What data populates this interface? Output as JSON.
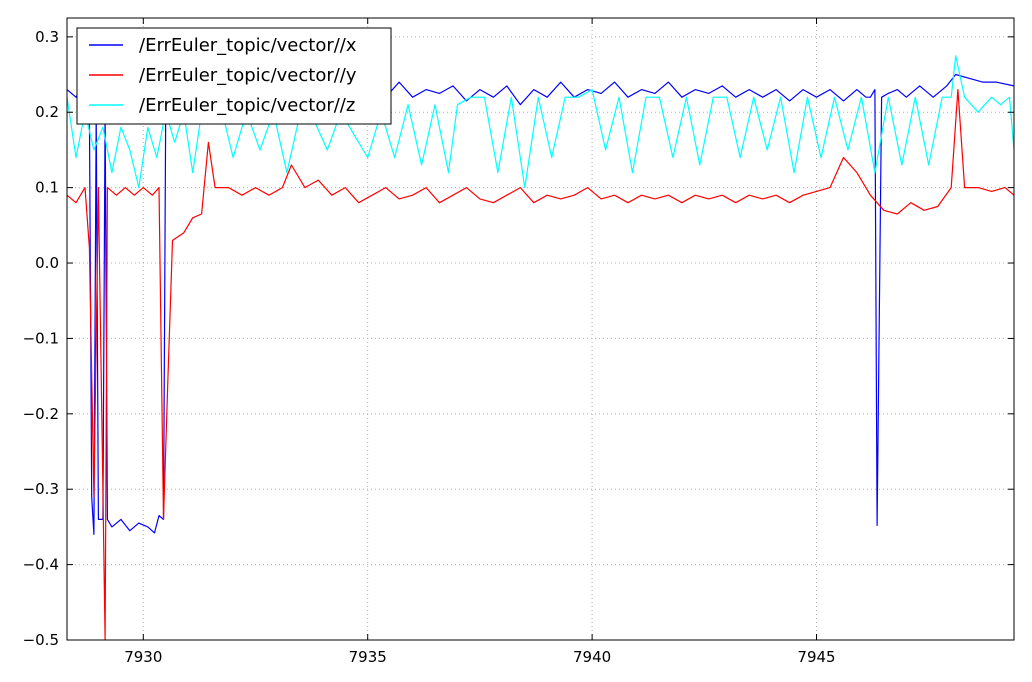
{
  "chart_data": {
    "type": "line",
    "title": "",
    "xlabel": "",
    "ylabel": "",
    "xlim": [
      7928.3,
      7949.4
    ],
    "ylim": [
      -0.5,
      0.325
    ],
    "grid": true,
    "legend_position": "top-left",
    "xticks": [
      7930,
      7935,
      7940,
      7945
    ],
    "yticks": [
      -0.5,
      -0.4,
      -0.3,
      -0.2,
      -0.1,
      0.0,
      0.1,
      0.2,
      0.3
    ],
    "xtick_labels": [
      "7930",
      "7935",
      "7940",
      "7945"
    ],
    "ytick_labels": [
      "−0.5",
      "−0.4",
      "−0.3",
      "−0.2",
      "−0.1",
      "0.0",
      "0.1",
      "0.2",
      "0.3"
    ],
    "series": [
      {
        "name": "/ErrEuler_topic/vector//x",
        "color": "#0000ff",
        "points": [
          [
            7928.3,
            0.23
          ],
          [
            7928.5,
            0.22
          ],
          [
            7928.7,
            0.24
          ],
          [
            7928.8,
            0.2
          ],
          [
            7928.85,
            -0.31
          ],
          [
            7928.9,
            -0.36
          ],
          [
            7928.95,
            0.2
          ],
          [
            7929.0,
            -0.34
          ],
          [
            7929.1,
            -0.34
          ],
          [
            7929.15,
            0.2
          ],
          [
            7929.2,
            -0.34
          ],
          [
            7929.3,
            -0.35
          ],
          [
            7929.5,
            -0.34
          ],
          [
            7929.7,
            -0.355
          ],
          [
            7929.9,
            -0.345
          ],
          [
            7930.1,
            -0.35
          ],
          [
            7930.25,
            -0.358
          ],
          [
            7930.35,
            -0.335
          ],
          [
            7930.45,
            -0.34
          ],
          [
            7930.5,
            0.2
          ],
          [
            7930.6,
            0.22
          ],
          [
            7930.9,
            0.23
          ],
          [
            7931.2,
            0.22
          ],
          [
            7931.5,
            0.235
          ],
          [
            7931.8,
            0.21
          ],
          [
            7932.1,
            0.235
          ],
          [
            7932.4,
            0.215
          ],
          [
            7932.7,
            0.23
          ],
          [
            7933.0,
            0.22
          ],
          [
            7933.3,
            0.24
          ],
          [
            7933.6,
            0.215
          ],
          [
            7933.9,
            0.23
          ],
          [
            7934.2,
            0.22
          ],
          [
            7934.5,
            0.235
          ],
          [
            7934.8,
            0.215
          ],
          [
            7935.1,
            0.23
          ],
          [
            7935.4,
            0.22
          ],
          [
            7935.7,
            0.24
          ],
          [
            7936.0,
            0.22
          ],
          [
            7936.3,
            0.23
          ],
          [
            7936.6,
            0.225
          ],
          [
            7936.9,
            0.235
          ],
          [
            7937.2,
            0.215
          ],
          [
            7937.5,
            0.23
          ],
          [
            7937.8,
            0.22
          ],
          [
            7938.1,
            0.235
          ],
          [
            7938.4,
            0.21
          ],
          [
            7938.7,
            0.23
          ],
          [
            7939.0,
            0.22
          ],
          [
            7939.3,
            0.24
          ],
          [
            7939.6,
            0.22
          ],
          [
            7939.9,
            0.23
          ],
          [
            7940.2,
            0.225
          ],
          [
            7940.5,
            0.24
          ],
          [
            7940.8,
            0.22
          ],
          [
            7941.1,
            0.23
          ],
          [
            7941.4,
            0.225
          ],
          [
            7941.7,
            0.24
          ],
          [
            7942.0,
            0.22
          ],
          [
            7942.3,
            0.23
          ],
          [
            7942.6,
            0.225
          ],
          [
            7942.9,
            0.235
          ],
          [
            7943.2,
            0.22
          ],
          [
            7943.5,
            0.23
          ],
          [
            7943.8,
            0.22
          ],
          [
            7944.1,
            0.23
          ],
          [
            7944.4,
            0.215
          ],
          [
            7944.7,
            0.23
          ],
          [
            7945.0,
            0.22
          ],
          [
            7945.3,
            0.23
          ],
          [
            7945.6,
            0.215
          ],
          [
            7945.9,
            0.23
          ],
          [
            7946.1,
            0.22
          ],
          [
            7946.2,
            0.22
          ],
          [
            7946.3,
            0.23
          ],
          [
            7946.35,
            -0.348
          ],
          [
            7946.45,
            0.22
          ],
          [
            7946.6,
            0.225
          ],
          [
            7946.8,
            0.23
          ],
          [
            7947.0,
            0.22
          ],
          [
            7947.3,
            0.235
          ],
          [
            7947.6,
            0.22
          ],
          [
            7947.9,
            0.235
          ],
          [
            7948.1,
            0.25
          ],
          [
            7948.4,
            0.245
          ],
          [
            7948.7,
            0.24
          ],
          [
            7949.0,
            0.24
          ],
          [
            7949.4,
            0.235
          ]
        ]
      },
      {
        "name": "/ErrEuler_topic/vector//y",
        "color": "#ff0000",
        "points": [
          [
            7928.3,
            0.09
          ],
          [
            7928.5,
            0.08
          ],
          [
            7928.7,
            0.1
          ],
          [
            7928.8,
            0.02
          ],
          [
            7928.9,
            -0.31
          ],
          [
            7929.0,
            0.1
          ],
          [
            7929.1,
            -0.3
          ],
          [
            7929.15,
            -0.5
          ],
          [
            7929.2,
            0.1
          ],
          [
            7929.4,
            0.09
          ],
          [
            7929.6,
            0.1
          ],
          [
            7929.8,
            0.09
          ],
          [
            7930.0,
            0.1
          ],
          [
            7930.2,
            0.09
          ],
          [
            7930.35,
            0.1
          ],
          [
            7930.45,
            -0.34
          ],
          [
            7930.55,
            -0.15
          ],
          [
            7930.65,
            0.03
          ],
          [
            7930.9,
            0.04
          ],
          [
            7931.1,
            0.06
          ],
          [
            7931.3,
            0.065
          ],
          [
            7931.45,
            0.16
          ],
          [
            7931.6,
            0.1
          ],
          [
            7931.9,
            0.1
          ],
          [
            7932.2,
            0.09
          ],
          [
            7932.5,
            0.1
          ],
          [
            7932.8,
            0.09
          ],
          [
            7933.1,
            0.1
          ],
          [
            7933.3,
            0.13
          ],
          [
            7933.6,
            0.1
          ],
          [
            7933.9,
            0.11
          ],
          [
            7934.2,
            0.09
          ],
          [
            7934.5,
            0.1
          ],
          [
            7934.8,
            0.08
          ],
          [
            7935.1,
            0.09
          ],
          [
            7935.4,
            0.1
          ],
          [
            7935.7,
            0.085
          ],
          [
            7936.0,
            0.09
          ],
          [
            7936.3,
            0.1
          ],
          [
            7936.6,
            0.08
          ],
          [
            7936.9,
            0.09
          ],
          [
            7937.2,
            0.1
          ],
          [
            7937.5,
            0.085
          ],
          [
            7937.8,
            0.08
          ],
          [
            7938.1,
            0.09
          ],
          [
            7938.4,
            0.1
          ],
          [
            7938.7,
            0.08
          ],
          [
            7939.0,
            0.09
          ],
          [
            7939.3,
            0.085
          ],
          [
            7939.6,
            0.09
          ],
          [
            7939.9,
            0.1
          ],
          [
            7940.2,
            0.085
          ],
          [
            7940.5,
            0.09
          ],
          [
            7940.8,
            0.08
          ],
          [
            7941.1,
            0.09
          ],
          [
            7941.4,
            0.085
          ],
          [
            7941.7,
            0.09
          ],
          [
            7942.0,
            0.08
          ],
          [
            7942.3,
            0.09
          ],
          [
            7942.6,
            0.085
          ],
          [
            7942.9,
            0.09
          ],
          [
            7943.2,
            0.08
          ],
          [
            7943.5,
            0.09
          ],
          [
            7943.8,
            0.085
          ],
          [
            7944.1,
            0.09
          ],
          [
            7944.4,
            0.08
          ],
          [
            7944.7,
            0.09
          ],
          [
            7945.0,
            0.095
          ],
          [
            7945.3,
            0.1
          ],
          [
            7945.6,
            0.14
          ],
          [
            7945.9,
            0.12
          ],
          [
            7946.2,
            0.09
          ],
          [
            7946.5,
            0.07
          ],
          [
            7946.8,
            0.065
          ],
          [
            7947.1,
            0.08
          ],
          [
            7947.4,
            0.07
          ],
          [
            7947.7,
            0.075
          ],
          [
            7948.0,
            0.1
          ],
          [
            7948.15,
            0.23
          ],
          [
            7948.3,
            0.1
          ],
          [
            7948.6,
            0.1
          ],
          [
            7948.9,
            0.095
          ],
          [
            7949.2,
            0.1
          ],
          [
            7949.4,
            0.09
          ]
        ]
      },
      {
        "name": "/ErrEuler_topic/vector//z",
        "color": "#00ffff",
        "points": [
          [
            7928.3,
            0.22
          ],
          [
            7928.5,
            0.14
          ],
          [
            7928.7,
            0.2
          ],
          [
            7928.9,
            0.15
          ],
          [
            7929.1,
            0.18
          ],
          [
            7929.3,
            0.12
          ],
          [
            7929.5,
            0.18
          ],
          [
            7929.7,
            0.15
          ],
          [
            7929.9,
            0.1
          ],
          [
            7930.1,
            0.18
          ],
          [
            7930.3,
            0.14
          ],
          [
            7930.5,
            0.2
          ],
          [
            7930.7,
            0.16
          ],
          [
            7930.9,
            0.2
          ],
          [
            7931.1,
            0.12
          ],
          [
            7931.3,
            0.2
          ],
          [
            7931.5,
            0.2
          ],
          [
            7931.8,
            0.19
          ],
          [
            7932.0,
            0.14
          ],
          [
            7932.3,
            0.2
          ],
          [
            7932.6,
            0.15
          ],
          [
            7932.9,
            0.2
          ],
          [
            7933.2,
            0.12
          ],
          [
            7933.5,
            0.2
          ],
          [
            7933.8,
            0.19
          ],
          [
            7934.1,
            0.15
          ],
          [
            7934.4,
            0.2
          ],
          [
            7934.7,
            0.17
          ],
          [
            7935.0,
            0.14
          ],
          [
            7935.3,
            0.2
          ],
          [
            7935.6,
            0.14
          ],
          [
            7935.9,
            0.21
          ],
          [
            7936.2,
            0.13
          ],
          [
            7936.5,
            0.21
          ],
          [
            7936.8,
            0.12
          ],
          [
            7937.0,
            0.21
          ],
          [
            7937.3,
            0.22
          ],
          [
            7937.6,
            0.22
          ],
          [
            7937.9,
            0.12
          ],
          [
            7938.2,
            0.22
          ],
          [
            7938.5,
            0.1
          ],
          [
            7938.8,
            0.22
          ],
          [
            7939.1,
            0.14
          ],
          [
            7939.4,
            0.22
          ],
          [
            7939.7,
            0.22
          ],
          [
            7940.0,
            0.23
          ],
          [
            7940.3,
            0.15
          ],
          [
            7940.6,
            0.22
          ],
          [
            7940.9,
            0.12
          ],
          [
            7941.2,
            0.22
          ],
          [
            7941.5,
            0.22
          ],
          [
            7941.8,
            0.14
          ],
          [
            7942.1,
            0.22
          ],
          [
            7942.4,
            0.13
          ],
          [
            7942.7,
            0.22
          ],
          [
            7943.0,
            0.22
          ],
          [
            7943.3,
            0.14
          ],
          [
            7943.6,
            0.22
          ],
          [
            7943.9,
            0.15
          ],
          [
            7944.2,
            0.22
          ],
          [
            7944.5,
            0.12
          ],
          [
            7944.8,
            0.22
          ],
          [
            7945.1,
            0.14
          ],
          [
            7945.4,
            0.22
          ],
          [
            7945.7,
            0.15
          ],
          [
            7946.0,
            0.22
          ],
          [
            7946.3,
            0.12
          ],
          [
            7946.6,
            0.22
          ],
          [
            7946.9,
            0.13
          ],
          [
            7947.2,
            0.22
          ],
          [
            7947.5,
            0.13
          ],
          [
            7947.8,
            0.22
          ],
          [
            7948.0,
            0.22
          ],
          [
            7948.1,
            0.275
          ],
          [
            7948.3,
            0.22
          ],
          [
            7948.6,
            0.2
          ],
          [
            7948.9,
            0.22
          ],
          [
            7949.1,
            0.21
          ],
          [
            7949.3,
            0.22
          ],
          [
            7949.4,
            0.15
          ]
        ]
      }
    ]
  }
}
